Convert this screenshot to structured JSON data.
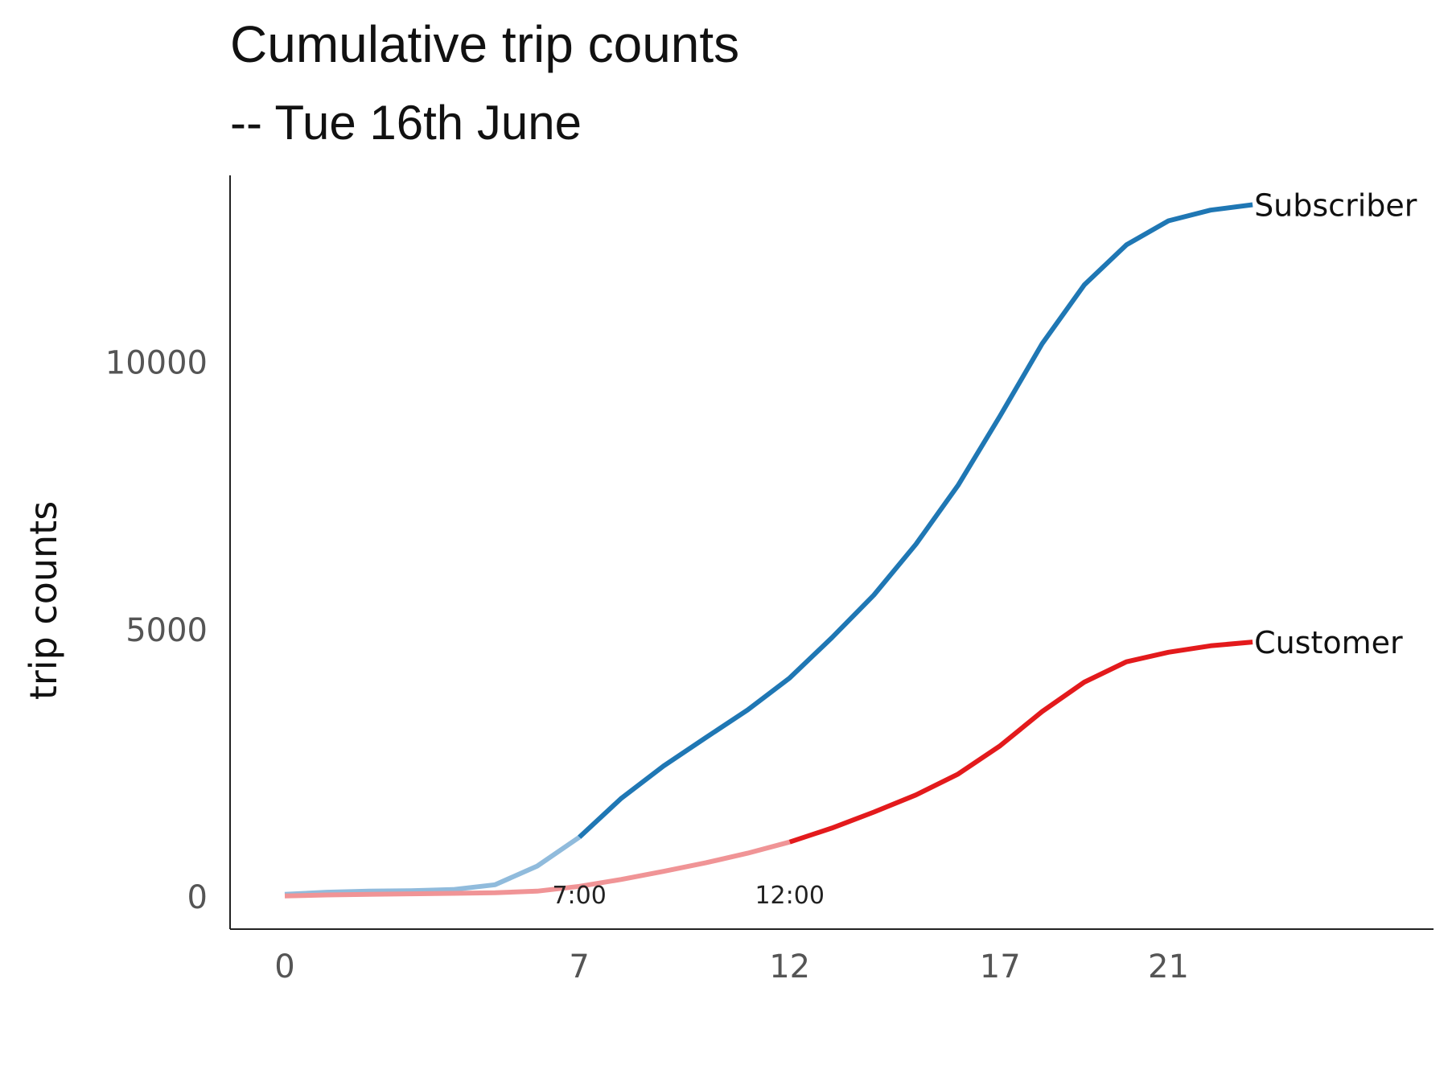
{
  "chart_data": {
    "type": "line",
    "title": "Cumulative trip counts",
    "subtitle": "-- Tue 16th June",
    "xlabel": "",
    "ylabel": "trip counts",
    "xlim": [
      -1.3,
      27.3
    ],
    "ylim": [
      -600,
      13500
    ],
    "x_ticks": [
      0,
      7,
      12,
      17,
      21
    ],
    "x_tick_labels": [
      "0",
      "7",
      "12",
      "17",
      "21"
    ],
    "y_ticks": [
      0,
      5000,
      10000
    ],
    "y_tick_labels": [
      "0",
      "5000",
      "10000"
    ],
    "x": [
      0,
      1,
      2,
      3,
      4,
      5,
      6,
      7,
      8,
      9,
      10,
      11,
      12,
      13,
      14,
      15,
      16,
      17,
      18,
      19,
      20,
      21,
      22,
      23
    ],
    "series": [
      {
        "name": "Subscriber",
        "color": "#1f77b4",
        "faded_color": "#90bbdc",
        "highlight_from": 7,
        "values": [
          50,
          90,
          110,
          120,
          140,
          230,
          580,
          1120,
          1850,
          2450,
          2980,
          3500,
          4100,
          4850,
          5650,
          6600,
          7700,
          9000,
          10350,
          11450,
          12200,
          12650,
          12850,
          12950
        ]
      },
      {
        "name": "Customer",
        "color": "#e31a1c",
        "faded_color": "#f09496",
        "highlight_from": 12,
        "values": [
          20,
          40,
          50,
          60,
          70,
          80,
          110,
          200,
          330,
          480,
          640,
          820,
          1030,
          1290,
          1590,
          1910,
          2300,
          2830,
          3470,
          4020,
          4400,
          4580,
          4700,
          4770
        ]
      }
    ],
    "annotations": [
      {
        "text": "7:00",
        "x": 7
      },
      {
        "text": "12:00",
        "x": 12
      }
    ]
  }
}
